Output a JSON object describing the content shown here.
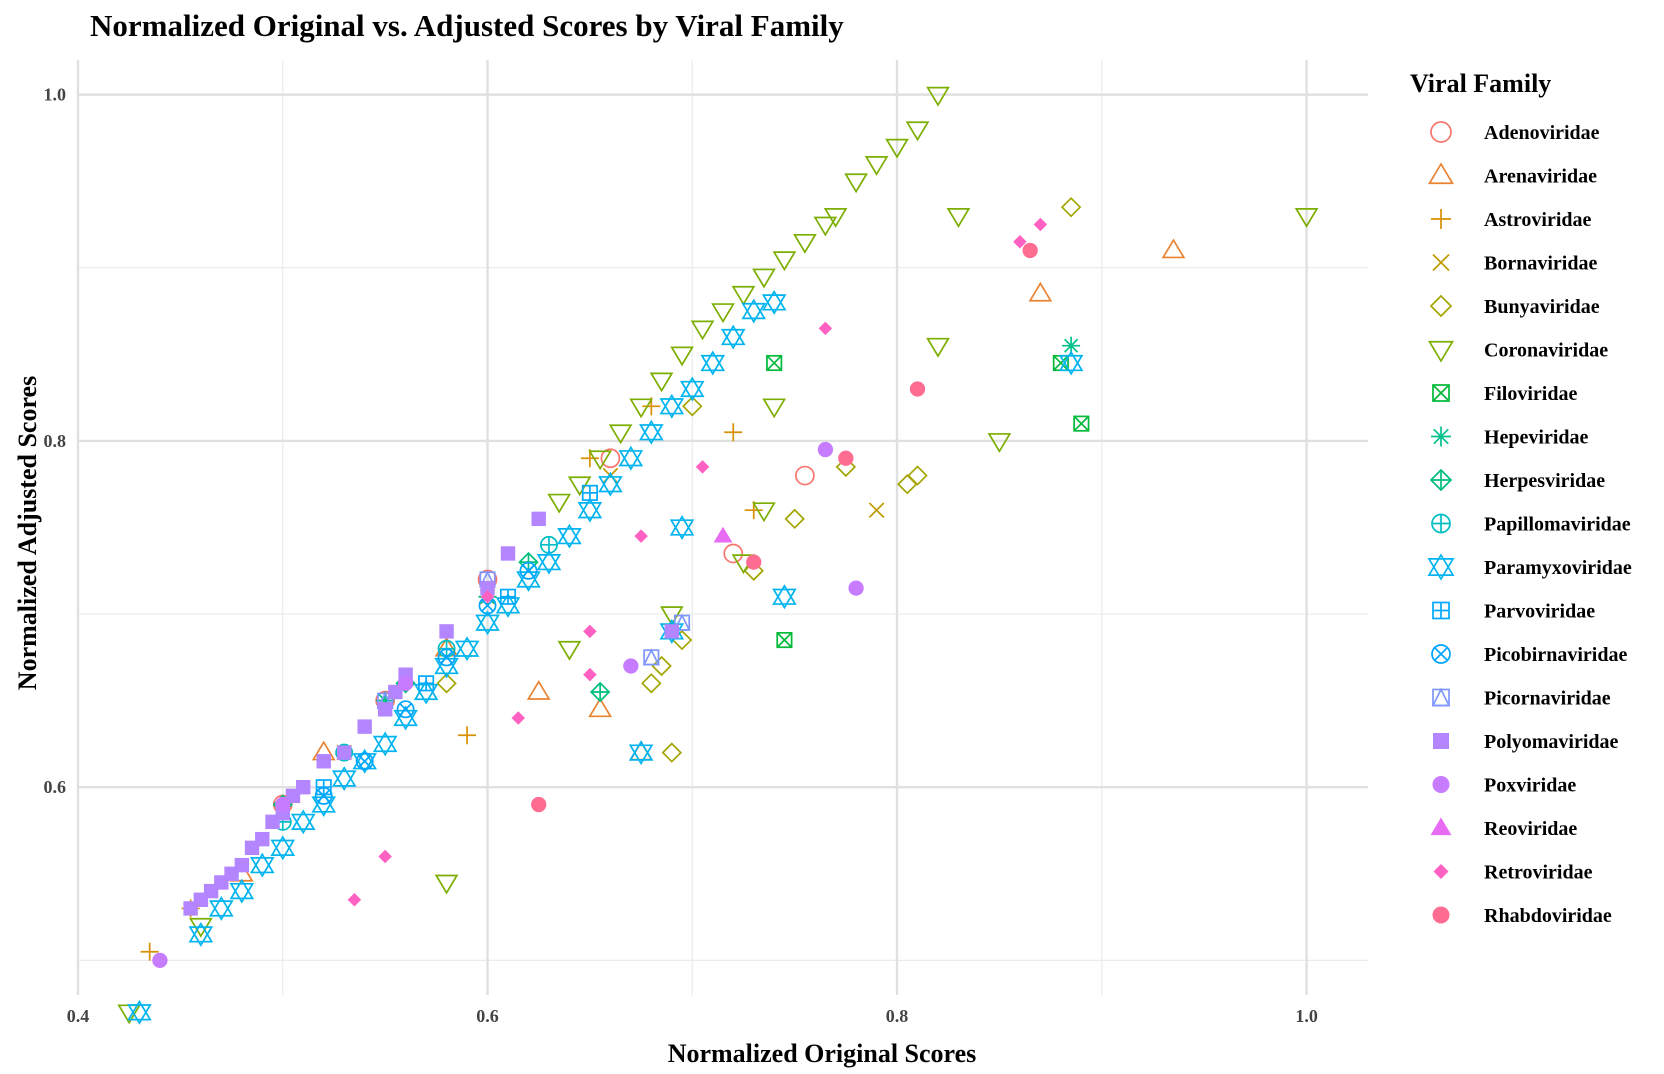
{
  "chart_data": {
    "type": "scatter",
    "title": "Normalized Original vs. Adjusted Scores by Viral Family",
    "xlabel": "Normalized Original Scores",
    "ylabel": "Normalized Adjusted Scores",
    "xlim": [
      0.4,
      1.03
    ],
    "ylim": [
      0.48,
      1.02
    ],
    "x_ticks": [
      0.4,
      0.6,
      0.8,
      1.0
    ],
    "x_tick_labels": [
      "0.4",
      "0.6",
      "0.8",
      "1.0"
    ],
    "y_ticks": [
      0.6,
      0.8,
      1.0
    ],
    "y_tick_labels": [
      "0.6",
      "0.8",
      "1.0"
    ],
    "grid": true,
    "legend": {
      "title": "Viral Family",
      "placement": "right"
    },
    "series": [
      {
        "name": "Adenoviridae",
        "color": "#F8766D",
        "shape": "open-circle",
        "points": [
          [
            0.66,
            0.79
          ],
          [
            0.72,
            0.735
          ],
          [
            0.755,
            0.78
          ],
          [
            0.6,
            0.72
          ],
          [
            0.55,
            0.65
          ],
          [
            0.5,
            0.59
          ]
        ]
      },
      {
        "name": "Arenaviridae",
        "color": "#EA8331",
        "shape": "open-triangle-up",
        "points": [
          [
            0.935,
            0.91
          ],
          [
            0.87,
            0.885
          ],
          [
            0.625,
            0.655
          ],
          [
            0.655,
            0.645
          ],
          [
            0.675,
            0.62
          ],
          [
            0.58,
            0.68
          ],
          [
            0.52,
            0.62
          ],
          [
            0.48,
            0.55
          ]
        ]
      },
      {
        "name": "Astroviridae",
        "color": "#D89000",
        "shape": "plus",
        "points": [
          [
            0.72,
            0.805
          ],
          [
            0.73,
            0.76
          ],
          [
            0.59,
            0.63
          ],
          [
            0.435,
            0.505
          ],
          [
            0.455,
            0.53
          ],
          [
            0.5,
            0.59
          ],
          [
            0.55,
            0.65
          ],
          [
            0.6,
            0.71
          ],
          [
            0.65,
            0.79
          ],
          [
            0.68,
            0.82
          ]
        ]
      },
      {
        "name": "Bornaviridae",
        "color": "#C09B00",
        "shape": "cross",
        "points": [
          [
            0.79,
            0.76
          ],
          [
            0.66,
            0.78
          ],
          [
            0.6,
            0.71
          ],
          [
            0.53,
            0.62
          ]
        ]
      },
      {
        "name": "Bunyaviridae",
        "color": "#A3A500",
        "shape": "open-diamond",
        "points": [
          [
            0.885,
            0.935
          ],
          [
            0.81,
            0.78
          ],
          [
            0.805,
            0.775
          ],
          [
            0.775,
            0.785
          ],
          [
            0.75,
            0.755
          ],
          [
            0.73,
            0.725
          ],
          [
            0.695,
            0.685
          ],
          [
            0.685,
            0.67
          ],
          [
            0.68,
            0.66
          ],
          [
            0.69,
            0.62
          ],
          [
            0.7,
            0.82
          ],
          [
            0.58,
            0.66
          ]
        ]
      },
      {
        "name": "Coronaviridae",
        "color": "#7CAE00",
        "shape": "open-triangle-down",
        "points": [
          [
            0.82,
            1.0
          ],
          [
            0.81,
            0.98
          ],
          [
            0.8,
            0.97
          ],
          [
            0.79,
            0.96
          ],
          [
            0.78,
            0.95
          ],
          [
            0.77,
            0.93
          ],
          [
            0.765,
            0.925
          ],
          [
            0.755,
            0.915
          ],
          [
            0.745,
            0.905
          ],
          [
            0.735,
            0.895
          ],
          [
            0.725,
            0.885
          ],
          [
            0.715,
            0.875
          ],
          [
            0.705,
            0.865
          ],
          [
            0.695,
            0.85
          ],
          [
            0.685,
            0.835
          ],
          [
            0.675,
            0.82
          ],
          [
            0.665,
            0.805
          ],
          [
            0.655,
            0.79
          ],
          [
            0.645,
            0.775
          ],
          [
            0.635,
            0.765
          ],
          [
            1.0,
            0.93
          ],
          [
            0.83,
            0.93
          ],
          [
            0.82,
            0.855
          ],
          [
            0.85,
            0.8
          ],
          [
            0.74,
            0.82
          ],
          [
            0.735,
            0.76
          ],
          [
            0.725,
            0.73
          ],
          [
            0.69,
            0.7
          ],
          [
            0.64,
            0.68
          ],
          [
            0.58,
            0.545
          ],
          [
            0.425,
            0.47
          ],
          [
            0.46,
            0.52
          ]
        ]
      },
      {
        "name": "Filoviridae",
        "color": "#00BA38",
        "shape": "boxed-cross",
        "points": [
          [
            0.74,
            0.845
          ],
          [
            0.745,
            0.685
          ],
          [
            0.88,
            0.845
          ],
          [
            0.89,
            0.81
          ]
        ]
      },
      {
        "name": "Hepeviridae",
        "color": "#00C08B",
        "shape": "asterisk",
        "points": [
          [
            0.885,
            0.855
          ],
          [
            0.6,
            0.71
          ],
          [
            0.55,
            0.65
          ]
        ]
      },
      {
        "name": "Herpesviridae",
        "color": "#00BF7D",
        "shape": "diamond-plus",
        "points": [
          [
            0.655,
            0.655
          ],
          [
            0.62,
            0.73
          ],
          [
            0.56,
            0.66
          ],
          [
            0.5,
            0.59
          ]
        ]
      },
      {
        "name": "Papillomaviridae",
        "color": "#00BFC4",
        "shape": "circle-plus",
        "points": [
          [
            0.53,
            0.62
          ],
          [
            0.58,
            0.68
          ],
          [
            0.63,
            0.74
          ],
          [
            0.5,
            0.58
          ]
        ]
      },
      {
        "name": "Paramyxoviridae",
        "color": "#00B4EF",
        "shape": "star-of-david",
        "points": [
          [
            0.885,
            0.845
          ],
          [
            0.745,
            0.71
          ],
          [
            0.695,
            0.75
          ],
          [
            0.675,
            0.62
          ],
          [
            0.69,
            0.69
          ],
          [
            0.43,
            0.47
          ],
          [
            0.46,
            0.515
          ],
          [
            0.47,
            0.53
          ],
          [
            0.48,
            0.54
          ],
          [
            0.49,
            0.555
          ],
          [
            0.5,
            0.565
          ],
          [
            0.51,
            0.58
          ],
          [
            0.52,
            0.59
          ],
          [
            0.53,
            0.605
          ],
          [
            0.54,
            0.615
          ],
          [
            0.55,
            0.625
          ],
          [
            0.56,
            0.64
          ],
          [
            0.57,
            0.655
          ],
          [
            0.58,
            0.67
          ],
          [
            0.59,
            0.68
          ],
          [
            0.6,
            0.695
          ],
          [
            0.61,
            0.705
          ],
          [
            0.62,
            0.72
          ],
          [
            0.63,
            0.73
          ],
          [
            0.64,
            0.745
          ],
          [
            0.65,
            0.76
          ],
          [
            0.66,
            0.775
          ],
          [
            0.67,
            0.79
          ],
          [
            0.68,
            0.805
          ],
          [
            0.69,
            0.82
          ],
          [
            0.7,
            0.83
          ],
          [
            0.71,
            0.845
          ],
          [
            0.72,
            0.86
          ],
          [
            0.73,
            0.875
          ],
          [
            0.74,
            0.88
          ]
        ]
      },
      {
        "name": "Parvoviridae",
        "color": "#00A9FF",
        "shape": "boxed-plus",
        "points": [
          [
            0.52,
            0.6
          ],
          [
            0.57,
            0.66
          ],
          [
            0.61,
            0.71
          ],
          [
            0.65,
            0.77
          ]
        ]
      },
      {
        "name": "Picobirnaviridae",
        "color": "#00A5FF",
        "shape": "circle-cross",
        "points": [
          [
            0.52,
            0.595
          ],
          [
            0.54,
            0.615
          ],
          [
            0.56,
            0.645
          ],
          [
            0.58,
            0.675
          ],
          [
            0.6,
            0.705
          ],
          [
            0.62,
            0.725
          ]
        ]
      },
      {
        "name": "Picornaviridae",
        "color": "#7F96FF",
        "shape": "boxed-triangle",
        "points": [
          [
            0.695,
            0.695
          ],
          [
            0.68,
            0.675
          ],
          [
            0.6,
            0.72
          ],
          [
            0.55,
            0.65
          ]
        ]
      },
      {
        "name": "Polyomaviridae",
        "color": "#B385FF",
        "shape": "filled-square",
        "points": [
          [
            0.455,
            0.53
          ],
          [
            0.46,
            0.535
          ],
          [
            0.465,
            0.54
          ],
          [
            0.47,
            0.545
          ],
          [
            0.475,
            0.55
          ],
          [
            0.48,
            0.555
          ],
          [
            0.485,
            0.565
          ],
          [
            0.49,
            0.57
          ],
          [
            0.495,
            0.58
          ],
          [
            0.5,
            0.585
          ],
          [
            0.505,
            0.595
          ],
          [
            0.51,
            0.6
          ],
          [
            0.52,
            0.615
          ],
          [
            0.53,
            0.62
          ],
          [
            0.54,
            0.635
          ],
          [
            0.55,
            0.645
          ],
          [
            0.555,
            0.655
          ],
          [
            0.56,
            0.665
          ],
          [
            0.58,
            0.69
          ],
          [
            0.6,
            0.715
          ],
          [
            0.61,
            0.735
          ],
          [
            0.625,
            0.755
          ],
          [
            0.69,
            0.69
          ]
        ]
      },
      {
        "name": "Poxviridae",
        "color": "#C77CFF",
        "shape": "filled-circle",
        "points": [
          [
            0.44,
            0.5
          ],
          [
            0.765,
            0.795
          ],
          [
            0.78,
            0.715
          ],
          [
            0.67,
            0.67
          ],
          [
            0.56,
            0.66
          ],
          [
            0.5,
            0.59
          ]
        ]
      },
      {
        "name": "Reoviridae",
        "color": "#E76BF3",
        "shape": "filled-triangle-up",
        "points": [
          [
            0.715,
            0.745
          ]
        ]
      },
      {
        "name": "Retroviridae",
        "color": "#FF61C3",
        "shape": "filled-diamond",
        "points": [
          [
            0.87,
            0.925
          ],
          [
            0.86,
            0.915
          ],
          [
            0.765,
            0.865
          ],
          [
            0.705,
            0.785
          ],
          [
            0.675,
            0.745
          ],
          [
            0.65,
            0.69
          ],
          [
            0.65,
            0.665
          ],
          [
            0.615,
            0.64
          ],
          [
            0.55,
            0.56
          ],
          [
            0.535,
            0.535
          ],
          [
            0.6,
            0.71
          ]
        ]
      },
      {
        "name": "Rhabdoviridae",
        "color": "#FF6C91",
        "shape": "filled-circle",
        "points": [
          [
            0.865,
            0.91
          ],
          [
            0.81,
            0.83
          ],
          [
            0.775,
            0.79
          ],
          [
            0.73,
            0.73
          ],
          [
            0.625,
            0.59
          ]
        ]
      }
    ]
  }
}
